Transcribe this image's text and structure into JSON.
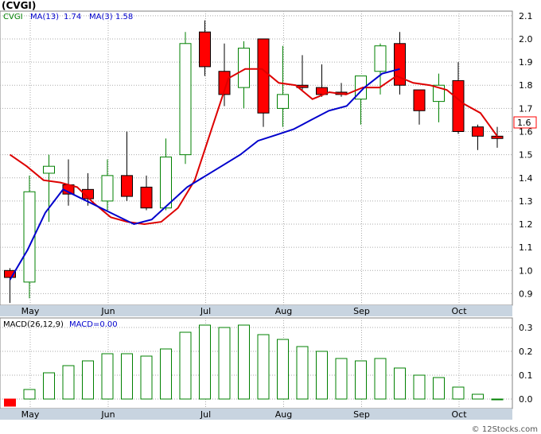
{
  "title": "(CVGI)",
  "price_legend": {
    "ticker": "CVGI",
    "ma13_label": "MA(13)",
    "ma13_value": "1.74",
    "ma3_label": "MA(3)",
    "ma3_value": "1.58"
  },
  "macd_legend": {
    "label": "MACD(26,12,9)",
    "value_label": "MACD=0.00"
  },
  "last_price_badge": "1.6",
  "watermark": "© 12Stocks.com",
  "colors": {
    "up": "#008000",
    "down": "#ff0000",
    "ma13": "#0000cc",
    "ma3": "#dd0000",
    "grid": "#aaaaaa",
    "axis_band": "#c8d4e0",
    "badge_border": "#ff0000"
  },
  "chart_data": [
    {
      "type": "candlestick",
      "name": "price",
      "y_ticks": [
        0.9,
        1.0,
        1.1,
        1.2,
        1.3,
        1.4,
        1.5,
        1.6,
        1.7,
        1.8,
        1.9,
        2.0,
        2.1
      ],
      "ylim": [
        0.85,
        2.12
      ],
      "x_month_labels": [
        {
          "label": "May",
          "index": 1
        },
        {
          "label": "Jun",
          "index": 5
        },
        {
          "label": "Jul",
          "index": 10
        },
        {
          "label": "Aug",
          "index": 14
        },
        {
          "label": "Sep",
          "index": 18
        },
        {
          "label": "Oct",
          "index": 23
        }
      ],
      "grid": true,
      "candles": [
        {
          "o": 1.0,
          "h": 1.01,
          "l": 0.86,
          "c": 0.97
        },
        {
          "o": 0.95,
          "h": 1.41,
          "l": 0.88,
          "c": 1.34
        },
        {
          "o": 1.42,
          "h": 1.5,
          "l": 1.21,
          "c": 1.45
        },
        {
          "o": 1.37,
          "h": 1.48,
          "l": 1.28,
          "c": 1.33
        },
        {
          "o": 1.35,
          "h": 1.42,
          "l": 1.28,
          "c": 1.31
        },
        {
          "o": 1.3,
          "h": 1.48,
          "l": 1.26,
          "c": 1.41
        },
        {
          "o": 1.41,
          "h": 1.6,
          "l": 1.3,
          "c": 1.32
        },
        {
          "o": 1.36,
          "h": 1.41,
          "l": 1.26,
          "c": 1.27
        },
        {
          "o": 1.27,
          "h": 1.57,
          "l": 1.26,
          "c": 1.49
        },
        {
          "o": 1.5,
          "h": 2.03,
          "l": 1.46,
          "c": 1.98
        },
        {
          "o": 2.03,
          "h": 2.08,
          "l": 1.84,
          "c": 1.88
        },
        {
          "o": 1.86,
          "h": 1.98,
          "l": 1.71,
          "c": 1.76
        },
        {
          "o": 1.79,
          "h": 1.99,
          "l": 1.7,
          "c": 1.96
        },
        {
          "o": 2.0,
          "h": 2.0,
          "l": 1.62,
          "c": 1.68
        },
        {
          "o": 1.7,
          "h": 1.97,
          "l": 1.62,
          "c": 1.76
        },
        {
          "o": 1.8,
          "h": 1.93,
          "l": 1.78,
          "c": 1.79
        },
        {
          "o": 1.79,
          "h": 1.89,
          "l": 1.75,
          "c": 1.76
        },
        {
          "o": 1.77,
          "h": 1.81,
          "l": 1.75,
          "c": 1.76
        },
        {
          "o": 1.74,
          "h": 1.84,
          "l": 1.63,
          "c": 1.84
        },
        {
          "o": 1.86,
          "h": 1.98,
          "l": 1.76,
          "c": 1.97
        },
        {
          "o": 1.98,
          "h": 2.03,
          "l": 1.76,
          "c": 1.8
        },
        {
          "o": 1.78,
          "h": 1.78,
          "l": 1.63,
          "c": 1.69
        },
        {
          "o": 1.73,
          "h": 1.85,
          "l": 1.64,
          "c": 1.8
        },
        {
          "o": 1.82,
          "h": 1.9,
          "l": 1.59,
          "c": 1.6
        },
        {
          "o": 1.62,
          "h": 1.63,
          "l": 1.52,
          "c": 1.58
        },
        {
          "o": 1.58,
          "h": 1.62,
          "l": 1.53,
          "c": 1.57
        }
      ],
      "ma13": [
        0.96,
        1.09,
        1.25,
        1.35,
        null,
        null,
        null,
        1.2,
        1.22,
        null,
        1.36,
        null,
        null,
        1.5,
        1.56,
        null,
        1.61,
        null,
        1.69,
        1.71,
        1.79,
        1.85,
        1.87
      ],
      "ma3": [
        1.5,
        1.45,
        1.39,
        1.38,
        1.36,
        1.29,
        1.23,
        1.21,
        1.2,
        1.21,
        1.27,
        1.39,
        1.61,
        1.83,
        1.87,
        1.87,
        1.81,
        1.8,
        1.74,
        1.77,
        1.76,
        1.79,
        1.79,
        1.84,
        1.81,
        1.8,
        1.78,
        1.72,
        1.68,
        1.58
      ]
    },
    {
      "type": "bar",
      "name": "macd",
      "y_ticks": [
        0.0,
        0.1,
        0.2,
        0.3
      ],
      "ylim": [
        -0.04,
        0.34
      ],
      "values": [
        -0.03,
        0.04,
        0.11,
        0.14,
        0.16,
        0.19,
        0.19,
        0.18,
        0.21,
        0.28,
        0.31,
        0.3,
        0.31,
        0.27,
        0.25,
        0.22,
        0.2,
        0.17,
        0.16,
        0.17,
        0.13,
        0.1,
        0.09,
        0.05,
        0.02,
        0.0
      ]
    }
  ]
}
